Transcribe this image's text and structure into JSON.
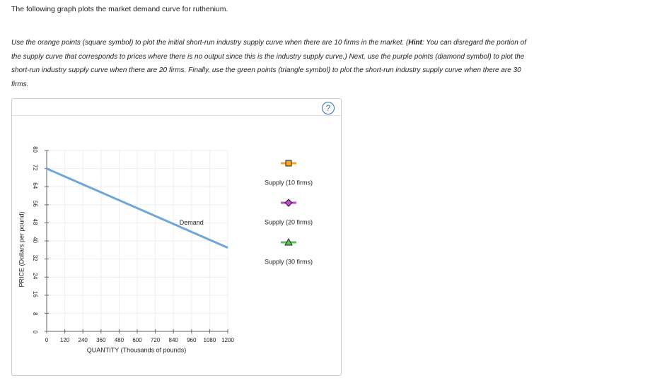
{
  "header": {
    "text": "The following graph plots the market demand curve for ruthenium."
  },
  "instructions": {
    "before": "Use the orange points (square symbol) to plot the initial short-run industry supply curve when there are 10 firms in the market. (",
    "hint": "Hint",
    "after": ": You can disregard the portion of the supply curve that corresponds to prices where there is no output since this is the industry supply curve.) Next, use the purple points (diamond symbol) to plot the short-run industry supply curve when there are 20 firms. Finally, use the green points (triangle symbol) to plot the short-run industry supply curve when there are 30 firms."
  },
  "help": {
    "label": "?"
  },
  "chart_data": {
    "type": "line",
    "x_label": "QUANTITY (Thousands of pounds)",
    "y_label": "PRICE (Dollars per pound)",
    "xlim": [
      0,
      1200
    ],
    "xticks": [
      0,
      120,
      240,
      360,
      480,
      600,
      720,
      840,
      960,
      1080,
      1200
    ],
    "ylim": [
      0,
      80
    ],
    "yticks": [
      0,
      8,
      16,
      24,
      32,
      40,
      48,
      56,
      64,
      72,
      80
    ],
    "grid": true,
    "series": [
      {
        "name": "Demand",
        "color": "#6fa6d8",
        "x": [
          0,
          1200
        ],
        "values": [
          72,
          37
        ]
      }
    ],
    "tools": [
      {
        "name": "Supply (10 firms)",
        "color": "#f5a623",
        "symbol": "square"
      },
      {
        "name": "Supply (20 firms)",
        "color": "#c246d0",
        "symbol": "diamond"
      },
      {
        "name": "Supply (30 firms)",
        "color": "#5cc05c",
        "symbol": "triangle"
      }
    ]
  }
}
